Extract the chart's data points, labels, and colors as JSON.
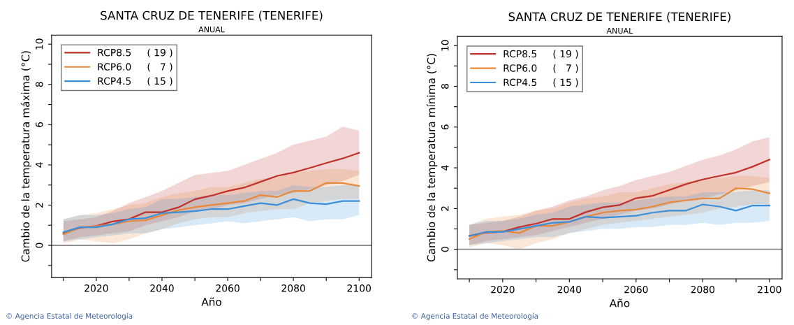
{
  "chart_data": [
    {
      "type": "line",
      "title": "SANTA CRUZ DE TENERIFE (TENERIFE)",
      "subtitle": "ANUAL",
      "xlabel": "Año",
      "ylabel": "Cambio de la temperatura máxima (°C)",
      "x": [
        2010,
        2015,
        2020,
        2025,
        2030,
        2035,
        2040,
        2045,
        2050,
        2055,
        2060,
        2065,
        2070,
        2075,
        2080,
        2085,
        2090,
        2095,
        2100
      ],
      "series": [
        {
          "name": "RCP8.5     ( 19 )",
          "color": "#c0312b",
          "values": [
            0.61,
            0.87,
            0.96,
            1.19,
            1.3,
            1.65,
            1.65,
            1.89,
            2.29,
            2.47,
            2.7,
            2.87,
            3.16,
            3.45,
            3.62,
            3.85,
            4.09,
            4.32,
            4.6
          ],
          "lower": [
            0.2,
            0.4,
            0.5,
            0.6,
            0.7,
            1.0,
            1.2,
            1.4,
            1.7,
            1.8,
            2.0,
            2.1,
            2.3,
            2.5,
            2.6,
            2.8,
            3.0,
            3.2,
            3.5
          ],
          "upper": [
            1.2,
            1.3,
            1.4,
            1.7,
            2.1,
            2.4,
            2.7,
            3.1,
            3.5,
            3.6,
            3.7,
            4.0,
            4.3,
            4.6,
            5.0,
            5.2,
            5.4,
            5.9,
            5.7
          ]
        },
        {
          "name": "RCP6.0     (   7 )",
          "color": "#e8883a",
          "values": [
            0.55,
            0.9,
            0.95,
            1.05,
            1.2,
            1.25,
            1.5,
            1.75,
            1.9,
            2.0,
            2.1,
            2.2,
            2.5,
            2.4,
            2.7,
            2.7,
            3.1,
            3.1,
            2.95
          ],
          "lower": [
            0.1,
            0.3,
            0.2,
            0.1,
            0.3,
            0.6,
            0.8,
            1.1,
            1.3,
            1.4,
            1.4,
            1.6,
            1.7,
            1.8,
            1.8,
            2.1,
            2.2,
            2.3,
            2.3
          ],
          "upper": [
            1.3,
            1.5,
            1.6,
            1.8,
            2.0,
            2.1,
            2.4,
            2.6,
            2.7,
            2.9,
            2.9,
            3.1,
            3.3,
            3.4,
            3.6,
            3.7,
            3.8,
            3.8,
            3.7
          ]
        },
        {
          "name": "RCP4.5     ( 15 )",
          "color": "#3b8fd9",
          "values": [
            0.65,
            0.9,
            0.9,
            1.05,
            1.3,
            1.35,
            1.6,
            1.65,
            1.7,
            1.8,
            1.8,
            1.95,
            2.1,
            2.0,
            2.3,
            2.1,
            2.05,
            2.2,
            2.2
          ],
          "lower": [
            0.2,
            0.3,
            0.4,
            0.5,
            0.6,
            0.6,
            0.8,
            0.9,
            1.0,
            1.1,
            1.2,
            1.1,
            1.2,
            1.3,
            1.4,
            1.2,
            1.3,
            1.3,
            1.5
          ],
          "upper": [
            1.3,
            1.5,
            1.5,
            1.6,
            1.8,
            1.9,
            2.3,
            2.3,
            2.4,
            2.5,
            2.5,
            2.6,
            2.7,
            2.7,
            3.0,
            2.9,
            2.9,
            3.0,
            3.0
          ]
        }
      ],
      "xlim": [
        2006.4,
        2103.8
      ],
      "ylim": [
        -1.6,
        10.45
      ],
      "xticks": [
        {
          "value": 2010,
          "label": null
        },
        2020,
        {
          "value": 2030,
          "label": null
        },
        2040,
        {
          "value": 2050,
          "label": null
        },
        2060,
        {
          "value": 2070,
          "label": null
        },
        2080,
        {
          "value": 2090,
          "label": null
        },
        2100
      ],
      "yticks": [
        {
          "value": -1,
          "label": null
        },
        0,
        {
          "value": 1,
          "label": null
        },
        2,
        {
          "value": 3,
          "label": null
        },
        4,
        {
          "value": 5,
          "label": null
        },
        6,
        {
          "value": 7,
          "label": null
        },
        8,
        {
          "value": 9,
          "label": null
        },
        10
      ],
      "ref_lines": [
        {
          "axis": "y",
          "value": 0,
          "label": null,
          "color": "#888888"
        }
      ],
      "legend": "top left",
      "grid": false,
      "marker": "none",
      "line_style": "solid",
      "annotations": [
        "© Agencia Estatal de Meteorología"
      ]
    },
    {
      "type": "line",
      "title": "SANTA CRUZ DE TENERIFE (TENERIFE)",
      "subtitle": "ANUAL",
      "xlabel": "Año",
      "ylabel": "Cambio de la temperatura mínima (°C)",
      "x": [
        2010,
        2015,
        2020,
        2025,
        2030,
        2035,
        2040,
        2045,
        2050,
        2055,
        2060,
        2065,
        2070,
        2075,
        2080,
        2085,
        2090,
        2095,
        2100
      ],
      "series": [
        {
          "name": "RCP8.5     ( 19 )",
          "color": "#c0312b",
          "values": [
            0.66,
            0.82,
            0.86,
            1.09,
            1.26,
            1.49,
            1.49,
            1.83,
            2.06,
            2.17,
            2.51,
            2.63,
            2.91,
            3.2,
            3.43,
            3.6,
            3.77,
            4.06,
            4.4
          ],
          "lower": [
            0.2,
            0.4,
            0.5,
            0.6,
            0.7,
            0.9,
            1.1,
            1.3,
            1.5,
            1.7,
            1.9,
            2.0,
            2.2,
            2.4,
            2.5,
            2.7,
            2.9,
            3.1,
            3.3
          ],
          "upper": [
            1.2,
            1.3,
            1.4,
            1.6,
            1.9,
            2.1,
            2.4,
            2.6,
            2.9,
            3.1,
            3.4,
            3.6,
            3.8,
            4.1,
            4.4,
            4.6,
            4.9,
            5.3,
            5.5
          ]
        },
        {
          "name": "RCP6.0     (   7 )",
          "color": "#e8883a",
          "values": [
            0.5,
            0.85,
            0.9,
            0.8,
            1.15,
            1.15,
            1.35,
            1.6,
            1.8,
            1.9,
            1.95,
            2.1,
            2.3,
            2.4,
            2.5,
            2.5,
            3.0,
            2.95,
            2.75
          ],
          "lower": [
            0.1,
            0.3,
            0.2,
            0.0,
            0.3,
            0.5,
            0.8,
            1.0,
            1.2,
            1.3,
            1.4,
            1.5,
            1.6,
            1.7,
            1.8,
            2.0,
            2.1,
            2.2,
            2.2
          ],
          "upper": [
            1.2,
            1.5,
            1.6,
            1.7,
            1.9,
            2.0,
            2.3,
            2.5,
            2.6,
            2.8,
            2.8,
            3.0,
            3.2,
            3.3,
            3.4,
            3.5,
            3.6,
            3.6,
            3.5
          ]
        },
        {
          "name": "RCP4.5     ( 15 )",
          "color": "#3b8fd9",
          "values": [
            0.65,
            0.85,
            0.85,
            1.0,
            1.15,
            1.3,
            1.35,
            1.6,
            1.55,
            1.6,
            1.65,
            1.8,
            1.9,
            1.9,
            2.2,
            2.1,
            1.9,
            2.15,
            2.15
          ],
          "lower": [
            0.2,
            0.3,
            0.4,
            0.5,
            0.6,
            0.6,
            0.8,
            0.9,
            1.0,
            1.0,
            1.1,
            1.1,
            1.2,
            1.2,
            1.3,
            1.2,
            1.3,
            1.3,
            1.4
          ],
          "upper": [
            1.2,
            1.4,
            1.4,
            1.5,
            1.7,
            1.8,
            2.1,
            2.2,
            2.3,
            2.3,
            2.4,
            2.5,
            2.6,
            2.6,
            2.8,
            2.8,
            2.8,
            2.9,
            2.9
          ]
        }
      ],
      "xlim": [
        2006.4,
        2103.8
      ],
      "ylim": [
        -1.45,
        10.45
      ],
      "xticks": [
        {
          "value": 2010,
          "label": null
        },
        2020,
        {
          "value": 2030,
          "label": null
        },
        2040,
        {
          "value": 2050,
          "label": null
        },
        2060,
        {
          "value": 2070,
          "label": null
        },
        2080,
        {
          "value": 2090,
          "label": null
        },
        2100
      ],
      "yticks": [
        {
          "value": -1,
          "label": null
        },
        0,
        {
          "value": 1,
          "label": null
        },
        2,
        {
          "value": 3,
          "label": null
        },
        4,
        {
          "value": 5,
          "label": null
        },
        6,
        {
          "value": 7,
          "label": null
        },
        8,
        {
          "value": 9,
          "label": null
        },
        10
      ],
      "ref_lines": [
        {
          "axis": "y",
          "value": 0,
          "label": null,
          "color": "#888888"
        }
      ],
      "legend": "top left",
      "grid": false,
      "marker": "none",
      "line_style": "solid",
      "annotations": [
        "© Agencia Estatal de Meteorología"
      ]
    }
  ]
}
